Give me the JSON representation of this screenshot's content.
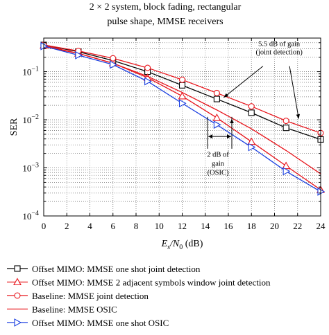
{
  "chart_data": {
    "type": "line",
    "title_lines": [
      "2 × 2 system, block fading, rectangular",
      "pulse shape, MMSE receivers"
    ],
    "xlabel": "E_s/N_0 (dB)",
    "xlabel_parts": {
      "main": "E",
      "sub1": "s",
      "slash": "/N",
      "sub2": "0",
      "unit": " (dB)"
    },
    "ylabel": "SER",
    "xlim": [
      0,
      24
    ],
    "ylim": [
      0.0001,
      0.5
    ],
    "yscale": "log",
    "x_ticks": [
      0,
      2,
      4,
      6,
      8,
      10,
      12,
      14,
      16,
      18,
      20,
      22,
      24
    ],
    "y_ticks": [
      {
        "value": 0.1,
        "base": "10",
        "exp": "−1"
      },
      {
        "value": 0.01,
        "base": "10",
        "exp": "−2"
      },
      {
        "value": 0.001,
        "base": "10",
        "exp": "−3"
      },
      {
        "value": 0.0001,
        "base": "10",
        "exp": "−4"
      }
    ],
    "grid": true,
    "legend_position": "bottom",
    "x": [
      0,
      3,
      6,
      9,
      12,
      15,
      18,
      21,
      24
    ],
    "series": [
      {
        "name": "Offset MIMO: MMSE one shot joint detection",
        "color": "#000000",
        "marker": "square",
        "values": [
          0.36,
          0.26,
          0.17,
          0.1,
          0.052,
          0.027,
          0.014,
          0.0068,
          0.0039
        ]
      },
      {
        "name": "Offset MIMO: MMSE 2 adjacent symbols window joint detection",
        "color": "#e8141b",
        "marker": "triangle-up",
        "values": [
          0.35,
          0.24,
          0.15,
          0.075,
          0.031,
          0.011,
          0.0035,
          0.0011,
          0.00035
        ]
      },
      {
        "name": "Baseline: MMSE joint detection",
        "color": "#e8141b",
        "marker": "circle",
        "values": [
          0.36,
          0.27,
          0.19,
          0.12,
          0.068,
          0.036,
          0.019,
          0.0095,
          0.0053
        ]
      },
      {
        "name": "Baseline: MMSE OSIC",
        "color": "#e8141b",
        "marker": "none",
        "values": [
          0.33,
          0.24,
          0.15,
          0.08,
          0.037,
          0.016,
          0.0065,
          0.0023,
          0.00075
        ]
      },
      {
        "name": "Offset MIMO: MMSE one shot OSIC",
        "color": "#1a3fe0",
        "marker": "triangle-right",
        "values": [
          0.34,
          0.22,
          0.14,
          0.063,
          0.022,
          0.0079,
          0.0027,
          0.00085,
          0.00032
        ]
      }
    ],
    "annotations": [
      {
        "lines": [
          "5.5 dB of gain",
          "(joint detection)"
        ]
      },
      {
        "lines": [
          "2 dB of",
          "gain",
          "(OSIC)"
        ]
      }
    ]
  }
}
